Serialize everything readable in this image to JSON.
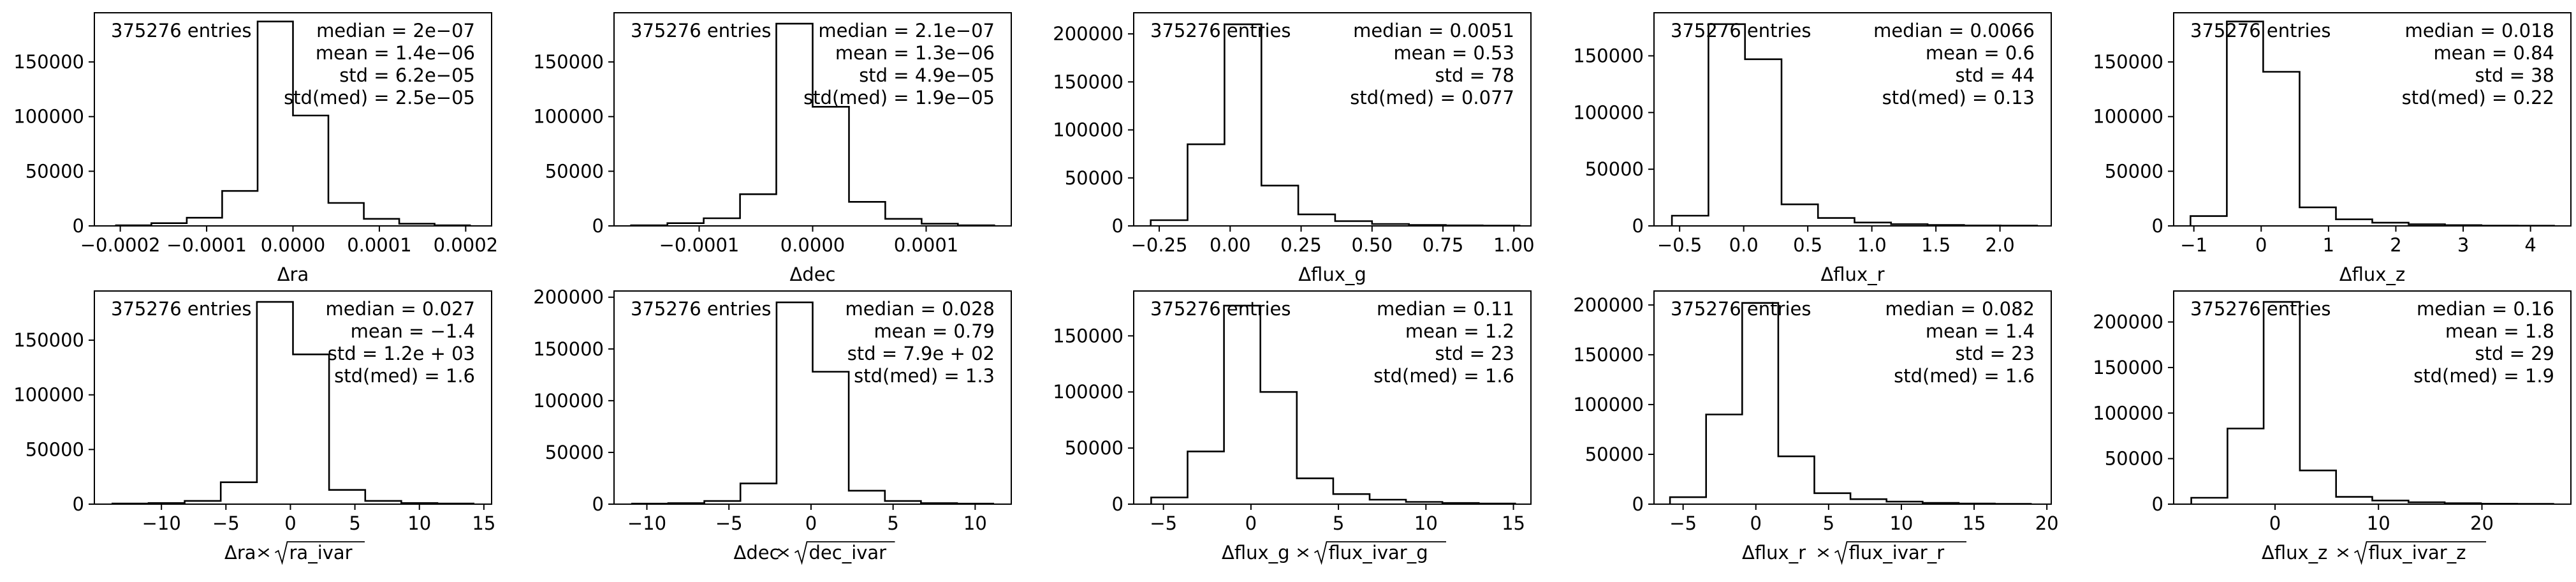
{
  "chart_data": [
    {
      "type": "bar",
      "xlabel": "Δra",
      "x_range": [
        -0.00023,
        0.00023
      ],
      "xticks": [
        -0.0002,
        -0.0001,
        0.0,
        0.0001,
        0.0002
      ],
      "xtick_labels": [
        "−0.0002",
        "−0.0001",
        "0.0000",
        "0.0001",
        "0.0002"
      ],
      "ylim": [
        0,
        195000
      ],
      "yticks": [
        0,
        50000,
        100000,
        150000
      ],
      "ytick_labels": [
        "0",
        "50000",
        "100000",
        "150000"
      ],
      "bin_edges": [
        -0.000205,
        -0.000164,
        -0.000123,
        -8.2e-05,
        -4.1e-05,
        0.0,
        4.1e-05,
        8.2e-05,
        0.000123,
        0.000164,
        0.000205
      ],
      "values": [
        500,
        2500,
        7500,
        32000,
        187000,
        101000,
        21000,
        6500,
        2000,
        500
      ],
      "entries_label": "375276 entries",
      "stats": [
        "median = 2e−07",
        "mean = 1.4e−06",
        "std = 6.2e−05",
        "std(med) = 2.5e−05"
      ]
    },
    {
      "type": "bar",
      "xlabel": "Δdec",
      "x_range": [
        -0.000175,
        0.000175
      ],
      "xticks": [
        -0.0001,
        0.0,
        0.0001
      ],
      "xtick_labels": [
        "−0.0001",
        "0.0000",
        "0.0001"
      ],
      "ylim": [
        0,
        195000
      ],
      "yticks": [
        0,
        50000,
        100000,
        150000
      ],
      "ytick_labels": [
        "0",
        "50000",
        "100000",
        "150000"
      ],
      "bin_edges": [
        -0.00016,
        -0.000128,
        -9.6e-05,
        -6.4e-05,
        -3.2e-05,
        0.0,
        3.2e-05,
        6.4e-05,
        9.6e-05,
        0.000128,
        0.00016
      ],
      "values": [
        500,
        2500,
        7000,
        29000,
        185000,
        109000,
        22000,
        6500,
        2000,
        500
      ],
      "entries_label": "375276 entries",
      "stats": [
        "median = 2.1e−07",
        "mean = 1.3e−06",
        "std = 4.9e−05",
        "std(med) = 1.9e−05"
      ]
    },
    {
      "type": "bar",
      "xlabel": "Δflux_g",
      "x_range": [
        -0.34,
        1.06
      ],
      "xticks": [
        -0.25,
        0.0,
        0.25,
        0.5,
        0.75,
        1.0
      ],
      "xtick_labels": [
        "−0.25",
        "0.00",
        "0.25",
        "0.50",
        "0.75",
        "1.00"
      ],
      "ylim": [
        0,
        222000
      ],
      "yticks": [
        0,
        50000,
        100000,
        150000,
        200000
      ],
      "ytick_labels": [
        "0",
        "50000",
        "100000",
        "150000",
        "200000"
      ],
      "bin_edges": [
        -0.28,
        -0.15,
        -0.02,
        0.11,
        0.24,
        0.37,
        0.5,
        0.63,
        0.76,
        0.89,
        1.02
      ],
      "values": [
        6000,
        85000,
        210000,
        42000,
        12000,
        5000,
        2000,
        1000,
        500,
        300
      ],
      "entries_label": "375276 entries",
      "stats": [
        "median = 0.0051",
        "mean = 0.53",
        "std = 78",
        "std(med) = 0.077"
      ]
    },
    {
      "type": "bar",
      "xlabel": "Δflux_r",
      "x_range": [
        -0.7,
        2.4
      ],
      "xticks": [
        -0.5,
        0.0,
        0.5,
        1.0,
        1.5,
        2.0
      ],
      "xtick_labels": [
        "−0.5",
        "0.0",
        "0.5",
        "1.0",
        "1.5",
        "2.0"
      ],
      "ylim": [
        0,
        188000
      ],
      "yticks": [
        0,
        50000,
        100000,
        150000
      ],
      "ytick_labels": [
        "0",
        "50000",
        "100000",
        "150000"
      ],
      "bin_edges": [
        -0.56,
        -0.275,
        0.01,
        0.295,
        0.58,
        0.865,
        1.15,
        1.435,
        1.72,
        2.005,
        2.29
      ],
      "values": [
        9000,
        178000,
        147000,
        19000,
        7000,
        3000,
        1500,
        800,
        400,
        200
      ],
      "entries_label": "375276 entries",
      "stats": [
        "median = 0.0066",
        "mean = 0.6",
        "std = 44",
        "std(med) = 0.13"
      ]
    },
    {
      "type": "bar",
      "xlabel": "Δflux_z",
      "x_range": [
        -1.3,
        4.6
      ],
      "xticks": [
        -1,
        0,
        1,
        2,
        3,
        4
      ],
      "xtick_labels": [
        "−1",
        "0",
        "1",
        "2",
        "3",
        "4"
      ],
      "ylim": [
        0,
        195000
      ],
      "yticks": [
        0,
        50000,
        100000,
        150000
      ],
      "ytick_labels": [
        "0",
        "50000",
        "100000",
        "150000"
      ],
      "bin_edges": [
        -1.05,
        -0.51,
        0.03,
        0.57,
        1.11,
        1.65,
        2.19,
        2.73,
        3.27,
        3.81,
        4.35
      ],
      "values": [
        9000,
        187000,
        141000,
        17000,
        6000,
        3000,
        1500,
        700,
        300,
        200
      ],
      "entries_label": "375276 entries",
      "stats": [
        "median = 0.018",
        "mean = 0.84",
        "std = 38",
        "std(med) = 0.22"
      ]
    },
    {
      "type": "bar",
      "xlabel_parts": [
        "Δra",
        "ra_ivar"
      ],
      "x_range": [
        -15.2,
        15.6
      ],
      "xticks": [
        -10,
        -5,
        0,
        5,
        10,
        15
      ],
      "xtick_labels": [
        "−10",
        "−5",
        "0",
        "5",
        "10",
        "15"
      ],
      "ylim": [
        0,
        195000
      ],
      "yticks": [
        0,
        50000,
        100000,
        150000
      ],
      "ytick_labels": [
        "0",
        "50000",
        "100000",
        "150000"
      ],
      "bin_edges": [
        -13.8,
        -11.0,
        -8.2,
        -5.4,
        -2.6,
        0.2,
        3.0,
        5.8,
        8.6,
        11.4,
        14.2
      ],
      "values": [
        500,
        1000,
        3000,
        20000,
        185000,
        137000,
        13000,
        3000,
        1000,
        500
      ],
      "entries_label": "375276 entries",
      "stats": [
        "median = 0.027",
        "mean = −1.4",
        "std = 1.2e + 03",
        "std(med) = 1.6"
      ]
    },
    {
      "type": "bar",
      "xlabel_parts": [
        "Δdec",
        "dec_ivar"
      ],
      "x_range": [
        -12.0,
        12.2
      ],
      "xticks": [
        -10,
        -5,
        0,
        5,
        10
      ],
      "xtick_labels": [
        "−10",
        "−5",
        "0",
        "5",
        "10"
      ],
      "ylim": [
        0,
        206000
      ],
      "yticks": [
        0,
        50000,
        100000,
        150000,
        200000
      ],
      "ytick_labels": [
        "0",
        "50000",
        "100000",
        "150000",
        "200000"
      ],
      "bin_edges": [
        -10.9,
        -8.7,
        -6.5,
        -4.3,
        -2.1,
        0.1,
        2.3,
        4.5,
        6.7,
        8.9,
        11.1
      ],
      "values": [
        500,
        1000,
        3000,
        20000,
        195000,
        128000,
        13000,
        3000,
        1000,
        500
      ],
      "entries_label": "375276 entries",
      "stats": [
        "median = 0.028",
        "mean = 0.79",
        "std = 7.9e + 02",
        "std(med) = 1.3"
      ]
    },
    {
      "type": "bar",
      "xlabel_parts": [
        "Δflux_g",
        "flux_ivar_g"
      ],
      "x_range": [
        -6.7,
        16.0
      ],
      "xticks": [
        -5,
        0,
        5,
        10,
        15
      ],
      "xtick_labels": [
        "−5",
        "0",
        "5",
        "10",
        "15"
      ],
      "ylim": [
        0,
        190000
      ],
      "yticks": [
        0,
        50000,
        100000,
        150000
      ],
      "ytick_labels": [
        "0",
        "50000",
        "100000",
        "150000"
      ],
      "bin_edges": [
        -5.7,
        -3.62,
        -1.54,
        0.54,
        2.62,
        4.7,
        6.78,
        8.86,
        10.94,
        13.02,
        15.1
      ],
      "values": [
        6000,
        47000,
        177000,
        100000,
        23000,
        9000,
        4000,
        2000,
        1000,
        500
      ],
      "entries_label": "375276 entries",
      "stats": [
        "median = 0.11",
        "mean = 1.2",
        "std = 23",
        "std(med) = 1.6"
      ]
    },
    {
      "type": "bar",
      "xlabel_parts": [
        "Δflux_r",
        "flux_ivar_r"
      ],
      "x_range": [
        -7.0,
        20.3
      ],
      "xticks": [
        -5,
        0,
        5,
        10,
        15,
        20
      ],
      "xtick_labels": [
        "−5",
        "0",
        "5",
        "10",
        "15",
        "20"
      ],
      "ylim": [
        0,
        214000
      ],
      "yticks": [
        0,
        50000,
        100000,
        150000,
        200000
      ],
      "ytick_labels": [
        "0",
        "50000",
        "100000",
        "150000",
        "200000"
      ],
      "bin_edges": [
        -5.9,
        -3.42,
        -0.94,
        1.54,
        4.02,
        6.5,
        8.98,
        11.46,
        13.94,
        16.42,
        18.9
      ],
      "values": [
        7000,
        90000,
        202000,
        48000,
        11000,
        5000,
        2500,
        1200,
        600,
        300
      ],
      "entries_label": "375276 entries",
      "stats": [
        "median = 0.082",
        "mean = 1.4",
        "std = 23",
        "std(med) = 1.6"
      ]
    },
    {
      "type": "bar",
      "xlabel_parts": [
        "Δflux_z",
        "flux_ivar_z"
      ],
      "x_range": [
        -9.8,
        28.6
      ],
      "xticks": [
        0,
        10,
        20
      ],
      "xtick_labels": [
        "0",
        "10",
        "20"
      ],
      "ylim": [
        0,
        234000
      ],
      "yticks": [
        0,
        50000,
        100000,
        150000,
        200000
      ],
      "ytick_labels": [
        "0",
        "50000",
        "100000",
        "150000",
        "200000"
      ],
      "bin_edges": [
        -8.1,
        -4.6,
        -1.1,
        2.4,
        5.9,
        9.4,
        12.9,
        16.4,
        19.9,
        23.4,
        26.9
      ],
      "values": [
        7000,
        83000,
        222000,
        37000,
        8000,
        4000,
        2000,
        1000,
        500,
        300
      ],
      "entries_label": "375276 entries",
      "stats": [
        "median = 0.16",
        "mean = 1.8",
        "std = 29",
        "std(med) = 1.9"
      ]
    }
  ]
}
